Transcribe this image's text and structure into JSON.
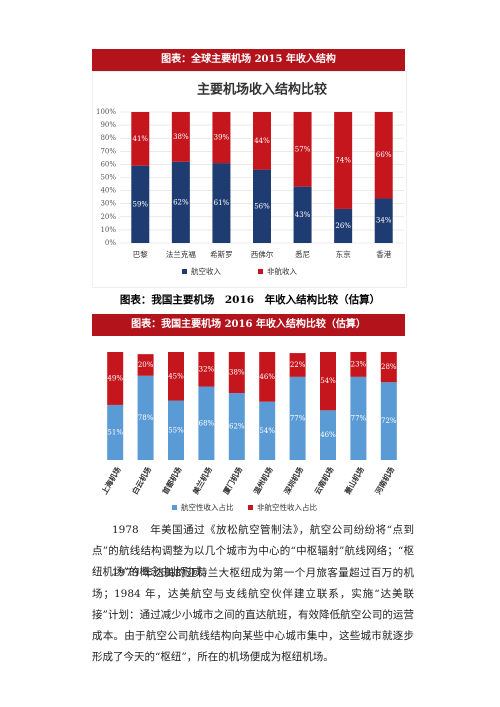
{
  "banner1": "图表：全球主要机场 2015 年收入结构",
  "caption": "图表：我国主要机场　2016　年收入结构比较（估算）",
  "banner2": "图表：我国主要机场 2016 年收入结构比较（估算）",
  "paragraphs": [
    "1978　年美国通过《放松航空管制法》，航空公司纷纷将“点到点”的航线结构调整为以几个城市为中心的“中枢辐射”航线网络；“枢纽机场”的概念由此形成。",
    "1979 年达美的亚特兰大枢纽成为第一个月旅客量超过百万的机场；1984 年，达美航空与支线航空伙伴建立联系，实施“达美联接”计划：通过减少小城市之间的直达航班，有效降低航空公司的运营成本。由于航空公司航线结构向某些中心城市集中，这些城市就逐步形成了今天的“枢纽”，所在的机场便成为枢纽机场。"
  ],
  "chart_data": [
    {
      "type": "bar",
      "stacked": true,
      "title": "主要机场收入结构比较",
      "categories": [
        "巴黎",
        "法兰克福",
        "希斯罗",
        "西佛尔",
        "悉尼",
        "东京",
        "香港"
      ],
      "series": [
        {
          "name": "航空收入",
          "color": "#1f3c72",
          "values": [
            59,
            62,
            61,
            56,
            43,
            26,
            34
          ],
          "value_labels": [
            "59%",
            "62%",
            "61%",
            "56%",
            "43%",
            "26%",
            "34%"
          ]
        },
        {
          "name": "非航收入",
          "color": "#c4161c",
          "values": [
            41,
            38,
            39,
            44,
            57,
            74,
            66
          ],
          "value_labels": [
            "41%",
            "38%",
            "39%",
            "44%",
            "57%",
            "74%",
            "66%"
          ]
        }
      ],
      "ylim": [
        0,
        100
      ],
      "yticks": [
        {
          "value": 0,
          "label": "0%"
        },
        {
          "value": 10,
          "label": "10%"
        },
        {
          "value": 20,
          "label": "20%"
        },
        {
          "value": 30,
          "label": "30%"
        },
        {
          "value": 40,
          "label": "40%"
        },
        {
          "value": 50,
          "label": "50%"
        },
        {
          "value": 60,
          "label": "60%"
        },
        {
          "value": 70,
          "label": "70%"
        },
        {
          "value": 80,
          "label": "80%"
        },
        {
          "value": 90,
          "label": "90%"
        },
        {
          "value": 100,
          "label": "100%"
        }
      ],
      "grid": true,
      "legend": "bottom"
    },
    {
      "type": "bar",
      "stacked": true,
      "categories": [
        "上海机场",
        "白云机场",
        "首都机场",
        "美兰机场",
        "厦门机场",
        "温州机场",
        "深圳机场",
        "云南机场",
        "萧山机场",
        "河南机场"
      ],
      "series": [
        {
          "name": "航空性收入占比",
          "color": "#5b9bd5",
          "values": [
            51,
            78,
            55,
            68,
            62,
            54,
            77,
            46,
            77,
            72
          ],
          "value_labels": [
            "51%",
            "78%",
            "55%",
            "68%",
            "62%",
            "54%",
            "77%",
            "46%",
            "77%",
            "72%"
          ]
        },
        {
          "name": "非航空性收入占比",
          "color": "#c4161c",
          "values": [
            49,
            20,
            45,
            32,
            38,
            46,
            22,
            54,
            23,
            28
          ],
          "value_labels": [
            "49%",
            "20%",
            "45%",
            "32%",
            "38%",
            "46%",
            "22%",
            "54%",
            "23%",
            "28%"
          ]
        }
      ],
      "ylim": [
        0,
        100
      ],
      "grid": false,
      "legend": "bottom"
    }
  ]
}
